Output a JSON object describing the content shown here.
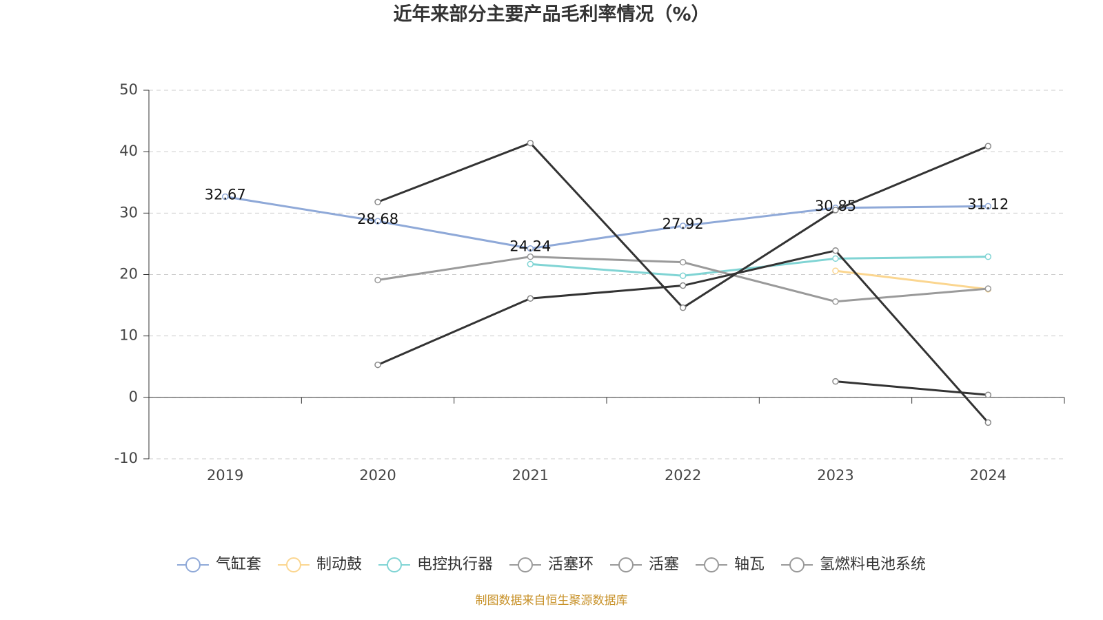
{
  "chart_data": {
    "type": "line",
    "title": "近年来部分主要产品毛利率情况（%）",
    "categories": [
      "2019",
      "2020",
      "2021",
      "2022",
      "2023",
      "2024"
    ],
    "ylim": [
      -10,
      50
    ],
    "yticks": [
      -10,
      0,
      10,
      20,
      30,
      40,
      50
    ],
    "grid": true,
    "series": [
      {
        "name": "气缸套",
        "color": "#8fa9d8",
        "show_labels": true,
        "values": [
          32.67,
          28.68,
          24.24,
          27.92,
          30.85,
          31.12
        ]
      },
      {
        "name": "制动鼓",
        "color": "#fbd690",
        "values": [
          null,
          null,
          null,
          null,
          20.6,
          17.6
        ]
      },
      {
        "name": "电控执行器",
        "color": "#80d4d4",
        "values": [
          null,
          null,
          21.7,
          19.8,
          22.6,
          22.9
        ]
      },
      {
        "name": "活塞环",
        "color": "#9a9a9a",
        "values": [
          null,
          19.1,
          22.9,
          22.0,
          15.6,
          17.7
        ]
      },
      {
        "name": "活塞",
        "color": "#333333",
        "values": [
          null,
          31.8,
          41.4,
          14.6,
          30.5,
          40.9
        ]
      },
      {
        "name": "轴瓦",
        "color": "#333333",
        "values": [
          null,
          5.3,
          16.1,
          18.2,
          23.9,
          -4.1
        ]
      },
      {
        "name": "氢燃料电池系统",
        "color": "#333333",
        "values": [
          null,
          null,
          null,
          null,
          2.6,
          0.4
        ]
      }
    ],
    "source": "制图数据来自恒生聚源数据库"
  }
}
